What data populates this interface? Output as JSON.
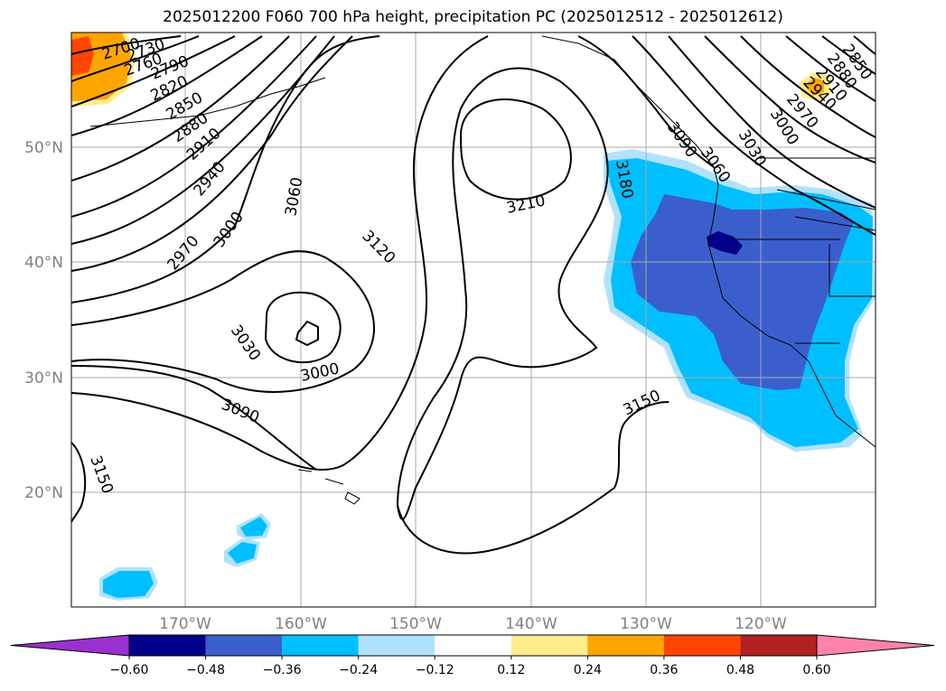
{
  "title": "2025012200 F060 700 hPa height, precipitation PC (2025012512 - 2025012612)",
  "map": {
    "lat_ticks": [
      "50°N",
      "40°N",
      "30°N",
      "20°N"
    ],
    "lon_ticks": [
      "170°W",
      "160°W",
      "150°W",
      "140°W",
      "130°W",
      "120°W"
    ],
    "gridlines": true
  },
  "contours": {
    "labels": [
      {
        "id": "c2700",
        "text": "2700"
      },
      {
        "id": "c2730",
        "text": "2730"
      },
      {
        "id": "c2760",
        "text": "2760"
      },
      {
        "id": "c2790",
        "text": "2790"
      },
      {
        "id": "c2820",
        "text": "2820"
      },
      {
        "id": "c2850w",
        "text": "2850"
      },
      {
        "id": "c2880w",
        "text": "2880"
      },
      {
        "id": "c2910w",
        "text": "2910"
      },
      {
        "id": "c2940w",
        "text": "2940"
      },
      {
        "id": "c3000w",
        "text": "3000"
      },
      {
        "id": "c2970w",
        "text": "2970"
      },
      {
        "id": "c3060",
        "text": "3060"
      },
      {
        "id": "c3030l",
        "text": "3030"
      },
      {
        "id": "c3000l",
        "text": "3000"
      },
      {
        "id": "c3090",
        "text": "3090"
      },
      {
        "id": "c3150sw",
        "text": "3150"
      },
      {
        "id": "c3120",
        "text": "3120"
      },
      {
        "id": "c3210",
        "text": "3210"
      },
      {
        "id": "c3180",
        "text": "3180"
      },
      {
        "id": "c3150e",
        "text": "3150"
      },
      {
        "id": "c3090ne",
        "text": "3090"
      },
      {
        "id": "c3060ne",
        "text": "3060"
      },
      {
        "id": "c3030ne",
        "text": "3030"
      },
      {
        "id": "c3000ne",
        "text": "3000"
      },
      {
        "id": "c2970ne",
        "text": "2970"
      },
      {
        "id": "c2940ne",
        "text": "2940"
      },
      {
        "id": "c2910ne",
        "text": "2910"
      },
      {
        "id": "c2880ne",
        "text": "2880"
      },
      {
        "id": "c2850ne",
        "text": "2850"
      }
    ]
  },
  "colorbar": {
    "ticks": [
      "−0.60",
      "−0.48",
      "−0.36",
      "−0.24",
      "−0.12",
      "0.12",
      "0.24",
      "0.36",
      "0.48",
      "0.60"
    ],
    "colors": [
      "#9b30d0",
      "#00008b",
      "#3a5fcd",
      "#00bfff",
      "#b0e2ff",
      "#ffffff",
      "#ffec8b",
      "#ffa500",
      "#ff4500",
      "#b22222",
      "#ff82ab",
      "#ff82ab"
    ]
  }
}
